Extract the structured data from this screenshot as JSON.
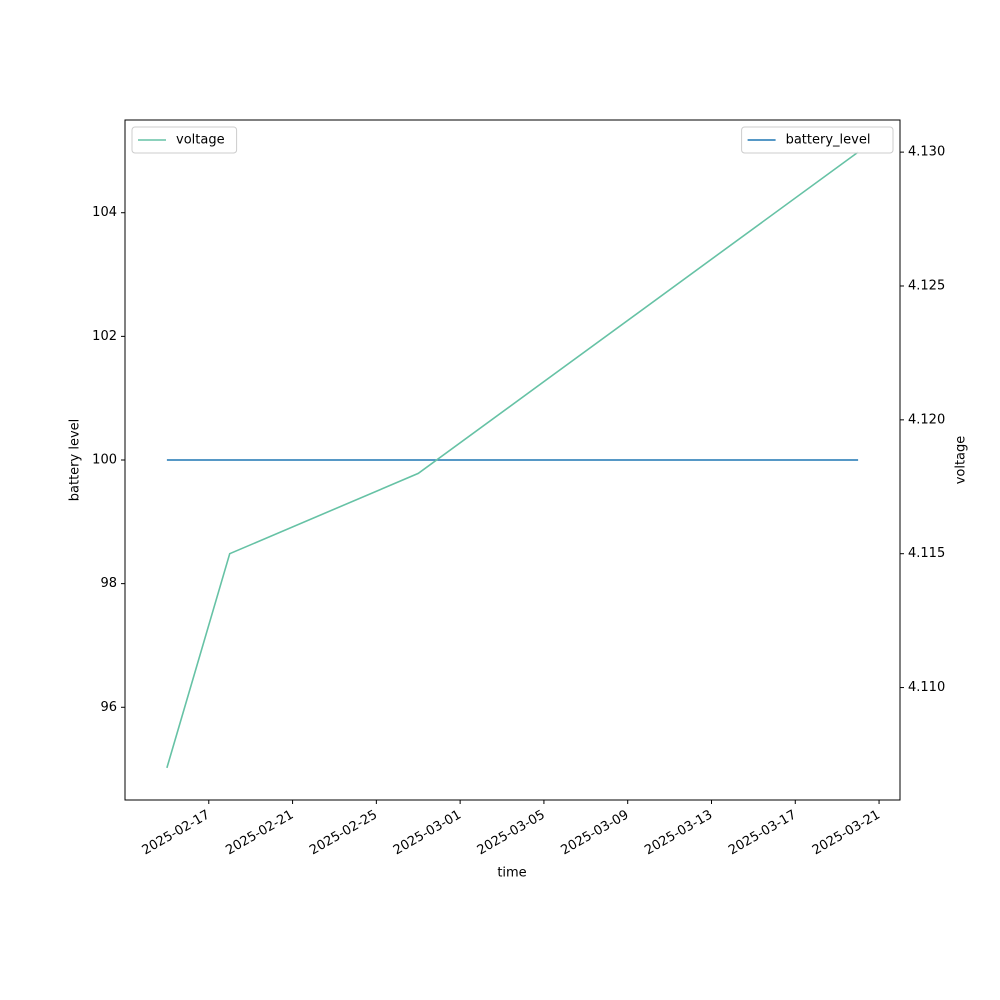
{
  "chart_data": {
    "type": "line",
    "x_label": "time",
    "y_label": "battery level",
    "y2_label": "voltage",
    "x": [
      "2025-02-15",
      "2025-02-18",
      "2025-02-27",
      "2025-03-20"
    ],
    "xlim": [
      "2025-02-13",
      "2025-03-22"
    ],
    "xticks": [
      "2025-02-17",
      "2025-02-21",
      "2025-02-25",
      "2025-03-01",
      "2025-03-05",
      "2025-03-09",
      "2025-03-13",
      "2025-03-17",
      "2025-03-21"
    ],
    "ylim": [
      94.5,
      105.5
    ],
    "yticks": [
      96,
      98,
      100,
      102,
      104
    ],
    "y2lim": [
      4.1058,
      4.1312
    ],
    "y2ticks": [
      {
        "value": 4.11,
        "label": "4.110"
      },
      4.115,
      {
        "value": 4.12,
        "label": "4.120"
      },
      4.125,
      {
        "value": 4.13,
        "label": "4.130"
      }
    ],
    "series": [
      {
        "name": "battery_level",
        "color": "#1f77b4",
        "values": [
          100,
          100,
          100,
          100
        ],
        "legend_loc": "upper right"
      },
      {
        "name": "voltage",
        "color": "#66c2a5",
        "axis": "y2",
        "values": [
          4.107,
          4.115,
          4.118,
          4.13
        ],
        "legend_loc": "upper left"
      }
    ]
  }
}
